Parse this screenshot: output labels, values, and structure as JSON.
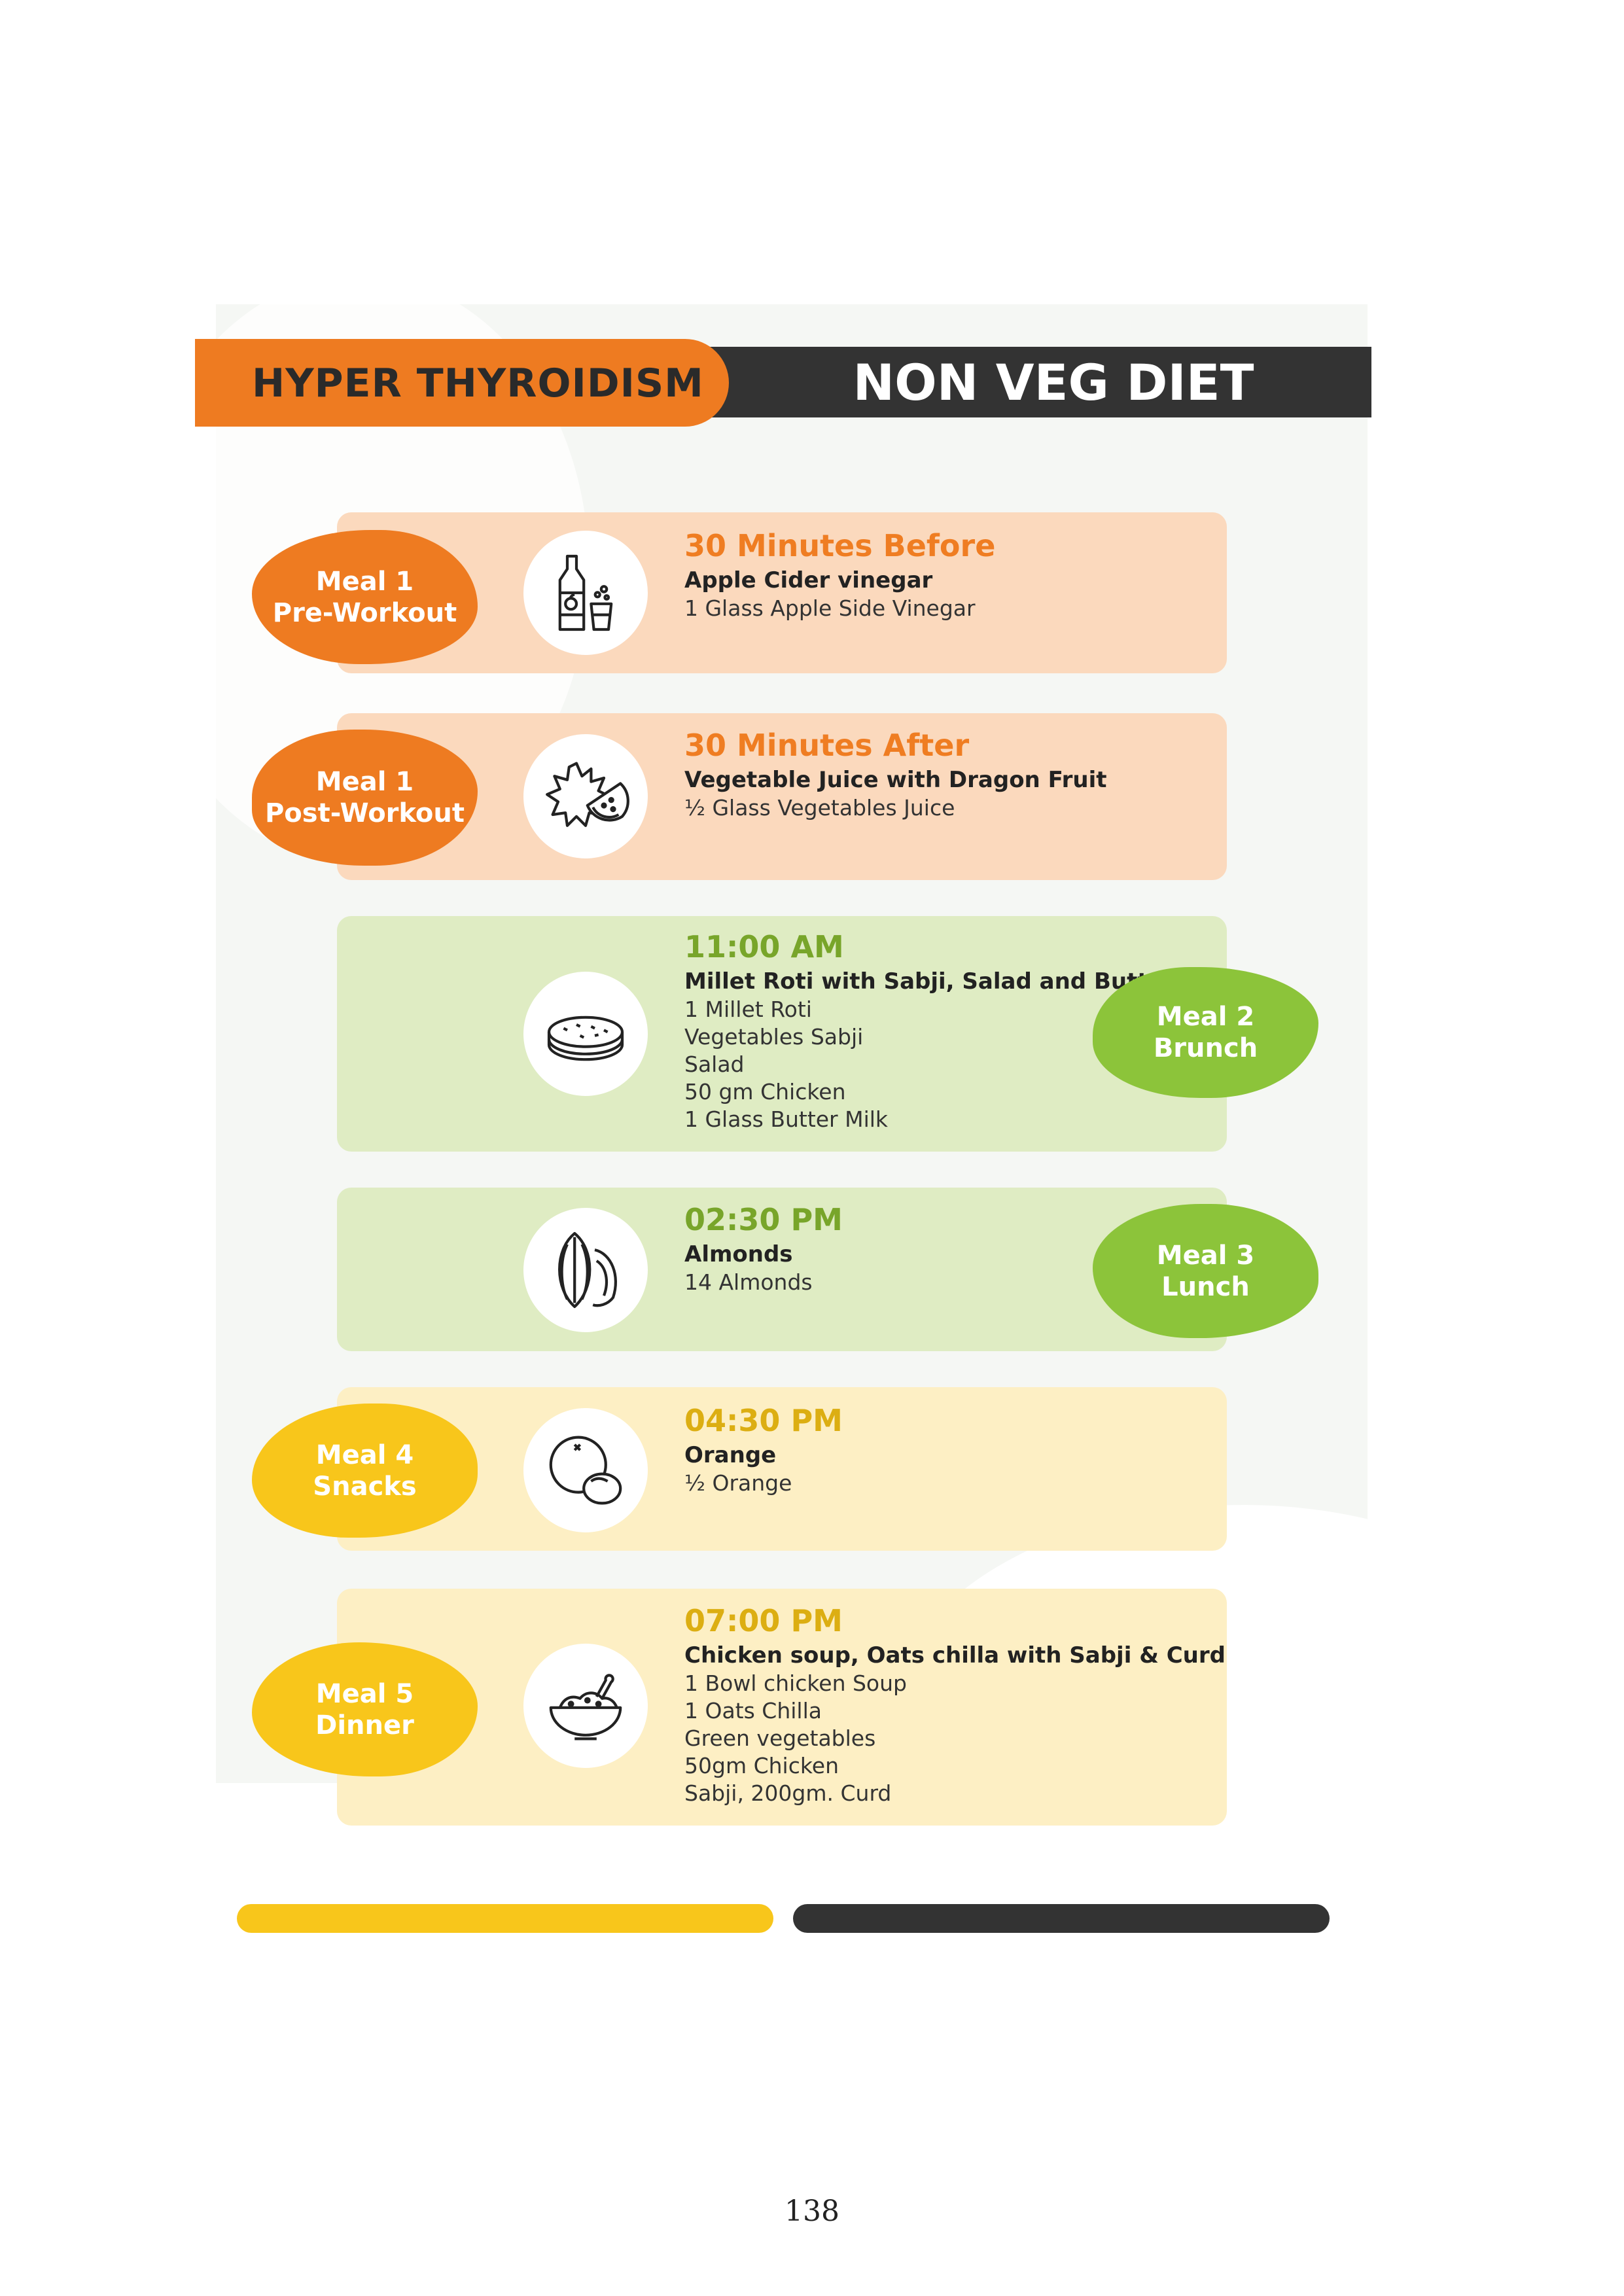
{
  "header": {
    "left_title": "HYPER THYROIDISM",
    "right_title": "NON VEG DIET"
  },
  "meals": [
    {
      "label_line1": "Meal 1",
      "label_line2": "Pre-Workout",
      "time": "30 Minutes Before",
      "dish": "Apple Cider vinegar",
      "items": [
        "1 Glass Apple Side Vinegar"
      ],
      "icon": "bottle-glass-icon",
      "theme": "orange"
    },
    {
      "label_line1": "Meal 1",
      "label_line2": "Post-Workout",
      "time": "30 Minutes After",
      "dish": "Vegetable Juice with Dragon Fruit",
      "items": [
        "½ Glass Vegetables Juice"
      ],
      "icon": "dragon-fruit-icon",
      "theme": "orange"
    },
    {
      "label_line1": "Meal 2",
      "label_line2": "Brunch",
      "time": "11:00 AM",
      "dish": "Millet Roti with Sabji, Salad and Buttermilk",
      "items": [
        "1 Millet Roti",
        "Vegetables Sabji",
        "Salad",
        "50 gm Chicken",
        "1 Glass Butter Milk"
      ],
      "icon": "roti-icon",
      "theme": "green"
    },
    {
      "label_line1": "Meal 3",
      "label_line2": "Lunch",
      "time": "02:30 PM",
      "dish": "Almonds",
      "items": [
        "14 Almonds"
      ],
      "icon": "almond-icon",
      "theme": "green"
    },
    {
      "label_line1": "Meal 4",
      "label_line2": "Snacks",
      "time": "04:30 PM",
      "dish": "Orange",
      "items": [
        " ½ Orange"
      ],
      "icon": "orange-fruit-icon",
      "theme": "yellow"
    },
    {
      "label_line1": "Meal 5",
      "label_line2": "Dinner",
      "time": "07:00 PM",
      "dish": "Chicken soup, Oats chilla with Sabji & Curd",
      "items": [
        " 1 Bowl chicken Soup",
        "1 Oats Chilla",
        "Green vegetables",
        "50gm Chicken",
        "Sabji,  200gm. Curd"
      ],
      "icon": "bowl-icon",
      "theme": "yellow"
    }
  ],
  "colors": {
    "orange": "#ee7b21",
    "green": "#8cc43a",
    "yellow": "#f8c61b",
    "dark": "#333333"
  },
  "page_number": "138"
}
